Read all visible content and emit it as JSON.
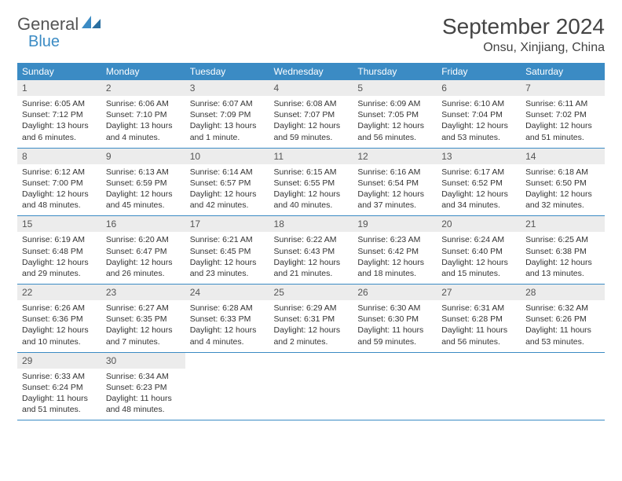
{
  "logo": {
    "text1": "General",
    "text2": "Blue"
  },
  "title": "September 2024",
  "location": "Onsu, Xinjiang, China",
  "colors": {
    "header_bg": "#3b8bc4",
    "header_fg": "#ffffff",
    "daynum_bg": "#ececec",
    "border": "#3b8bc4",
    "text": "#333333",
    "background": "#ffffff"
  },
  "weekdays": [
    "Sunday",
    "Monday",
    "Tuesday",
    "Wednesday",
    "Thursday",
    "Friday",
    "Saturday"
  ],
  "weeks": [
    [
      {
        "n": "1",
        "sr": "Sunrise: 6:05 AM",
        "ss": "Sunset: 7:12 PM",
        "dl": "Daylight: 13 hours and 6 minutes."
      },
      {
        "n": "2",
        "sr": "Sunrise: 6:06 AM",
        "ss": "Sunset: 7:10 PM",
        "dl": "Daylight: 13 hours and 4 minutes."
      },
      {
        "n": "3",
        "sr": "Sunrise: 6:07 AM",
        "ss": "Sunset: 7:09 PM",
        "dl": "Daylight: 13 hours and 1 minute."
      },
      {
        "n": "4",
        "sr": "Sunrise: 6:08 AM",
        "ss": "Sunset: 7:07 PM",
        "dl": "Daylight: 12 hours and 59 minutes."
      },
      {
        "n": "5",
        "sr": "Sunrise: 6:09 AM",
        "ss": "Sunset: 7:05 PM",
        "dl": "Daylight: 12 hours and 56 minutes."
      },
      {
        "n": "6",
        "sr": "Sunrise: 6:10 AM",
        "ss": "Sunset: 7:04 PM",
        "dl": "Daylight: 12 hours and 53 minutes."
      },
      {
        "n": "7",
        "sr": "Sunrise: 6:11 AM",
        "ss": "Sunset: 7:02 PM",
        "dl": "Daylight: 12 hours and 51 minutes."
      }
    ],
    [
      {
        "n": "8",
        "sr": "Sunrise: 6:12 AM",
        "ss": "Sunset: 7:00 PM",
        "dl": "Daylight: 12 hours and 48 minutes."
      },
      {
        "n": "9",
        "sr": "Sunrise: 6:13 AM",
        "ss": "Sunset: 6:59 PM",
        "dl": "Daylight: 12 hours and 45 minutes."
      },
      {
        "n": "10",
        "sr": "Sunrise: 6:14 AM",
        "ss": "Sunset: 6:57 PM",
        "dl": "Daylight: 12 hours and 42 minutes."
      },
      {
        "n": "11",
        "sr": "Sunrise: 6:15 AM",
        "ss": "Sunset: 6:55 PM",
        "dl": "Daylight: 12 hours and 40 minutes."
      },
      {
        "n": "12",
        "sr": "Sunrise: 6:16 AM",
        "ss": "Sunset: 6:54 PM",
        "dl": "Daylight: 12 hours and 37 minutes."
      },
      {
        "n": "13",
        "sr": "Sunrise: 6:17 AM",
        "ss": "Sunset: 6:52 PM",
        "dl": "Daylight: 12 hours and 34 minutes."
      },
      {
        "n": "14",
        "sr": "Sunrise: 6:18 AM",
        "ss": "Sunset: 6:50 PM",
        "dl": "Daylight: 12 hours and 32 minutes."
      }
    ],
    [
      {
        "n": "15",
        "sr": "Sunrise: 6:19 AM",
        "ss": "Sunset: 6:48 PM",
        "dl": "Daylight: 12 hours and 29 minutes."
      },
      {
        "n": "16",
        "sr": "Sunrise: 6:20 AM",
        "ss": "Sunset: 6:47 PM",
        "dl": "Daylight: 12 hours and 26 minutes."
      },
      {
        "n": "17",
        "sr": "Sunrise: 6:21 AM",
        "ss": "Sunset: 6:45 PM",
        "dl": "Daylight: 12 hours and 23 minutes."
      },
      {
        "n": "18",
        "sr": "Sunrise: 6:22 AM",
        "ss": "Sunset: 6:43 PM",
        "dl": "Daylight: 12 hours and 21 minutes."
      },
      {
        "n": "19",
        "sr": "Sunrise: 6:23 AM",
        "ss": "Sunset: 6:42 PM",
        "dl": "Daylight: 12 hours and 18 minutes."
      },
      {
        "n": "20",
        "sr": "Sunrise: 6:24 AM",
        "ss": "Sunset: 6:40 PM",
        "dl": "Daylight: 12 hours and 15 minutes."
      },
      {
        "n": "21",
        "sr": "Sunrise: 6:25 AM",
        "ss": "Sunset: 6:38 PM",
        "dl": "Daylight: 12 hours and 13 minutes."
      }
    ],
    [
      {
        "n": "22",
        "sr": "Sunrise: 6:26 AM",
        "ss": "Sunset: 6:36 PM",
        "dl": "Daylight: 12 hours and 10 minutes."
      },
      {
        "n": "23",
        "sr": "Sunrise: 6:27 AM",
        "ss": "Sunset: 6:35 PM",
        "dl": "Daylight: 12 hours and 7 minutes."
      },
      {
        "n": "24",
        "sr": "Sunrise: 6:28 AM",
        "ss": "Sunset: 6:33 PM",
        "dl": "Daylight: 12 hours and 4 minutes."
      },
      {
        "n": "25",
        "sr": "Sunrise: 6:29 AM",
        "ss": "Sunset: 6:31 PM",
        "dl": "Daylight: 12 hours and 2 minutes."
      },
      {
        "n": "26",
        "sr": "Sunrise: 6:30 AM",
        "ss": "Sunset: 6:30 PM",
        "dl": "Daylight: 11 hours and 59 minutes."
      },
      {
        "n": "27",
        "sr": "Sunrise: 6:31 AM",
        "ss": "Sunset: 6:28 PM",
        "dl": "Daylight: 11 hours and 56 minutes."
      },
      {
        "n": "28",
        "sr": "Sunrise: 6:32 AM",
        "ss": "Sunset: 6:26 PM",
        "dl": "Daylight: 11 hours and 53 minutes."
      }
    ],
    [
      {
        "n": "29",
        "sr": "Sunrise: 6:33 AM",
        "ss": "Sunset: 6:24 PM",
        "dl": "Daylight: 11 hours and 51 minutes."
      },
      {
        "n": "30",
        "sr": "Sunrise: 6:34 AM",
        "ss": "Sunset: 6:23 PM",
        "dl": "Daylight: 11 hours and 48 minutes."
      },
      null,
      null,
      null,
      null,
      null
    ]
  ]
}
